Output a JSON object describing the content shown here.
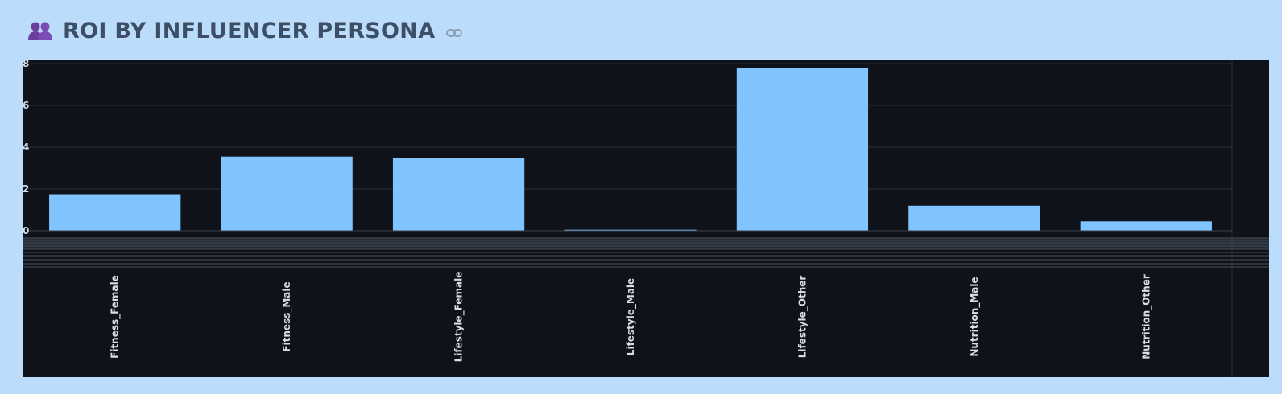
{
  "header": {
    "title": "ROI BY INFLUENCER PERSONA",
    "icon": "people-icon",
    "link_icon": "link-icon",
    "icon_color": "#6a3fa0"
  },
  "chart_data": {
    "type": "bar",
    "categories": [
      "Fitness_Female",
      "Fitness_Male",
      "Lifestyle_Female",
      "Lifestyle_Male",
      "Lifestyle_Other",
      "Nutrition_Male",
      "Nutrition_Other"
    ],
    "values": [
      1.75,
      3.55,
      3.5,
      0.05,
      7.8,
      1.2,
      0.45
    ],
    "yticks": [
      "0",
      "2",
      "4",
      "6",
      "8"
    ],
    "ylim": [
      0,
      8
    ],
    "grid": true,
    "bar_color": "#80c4ff",
    "background": "#0f1219"
  }
}
